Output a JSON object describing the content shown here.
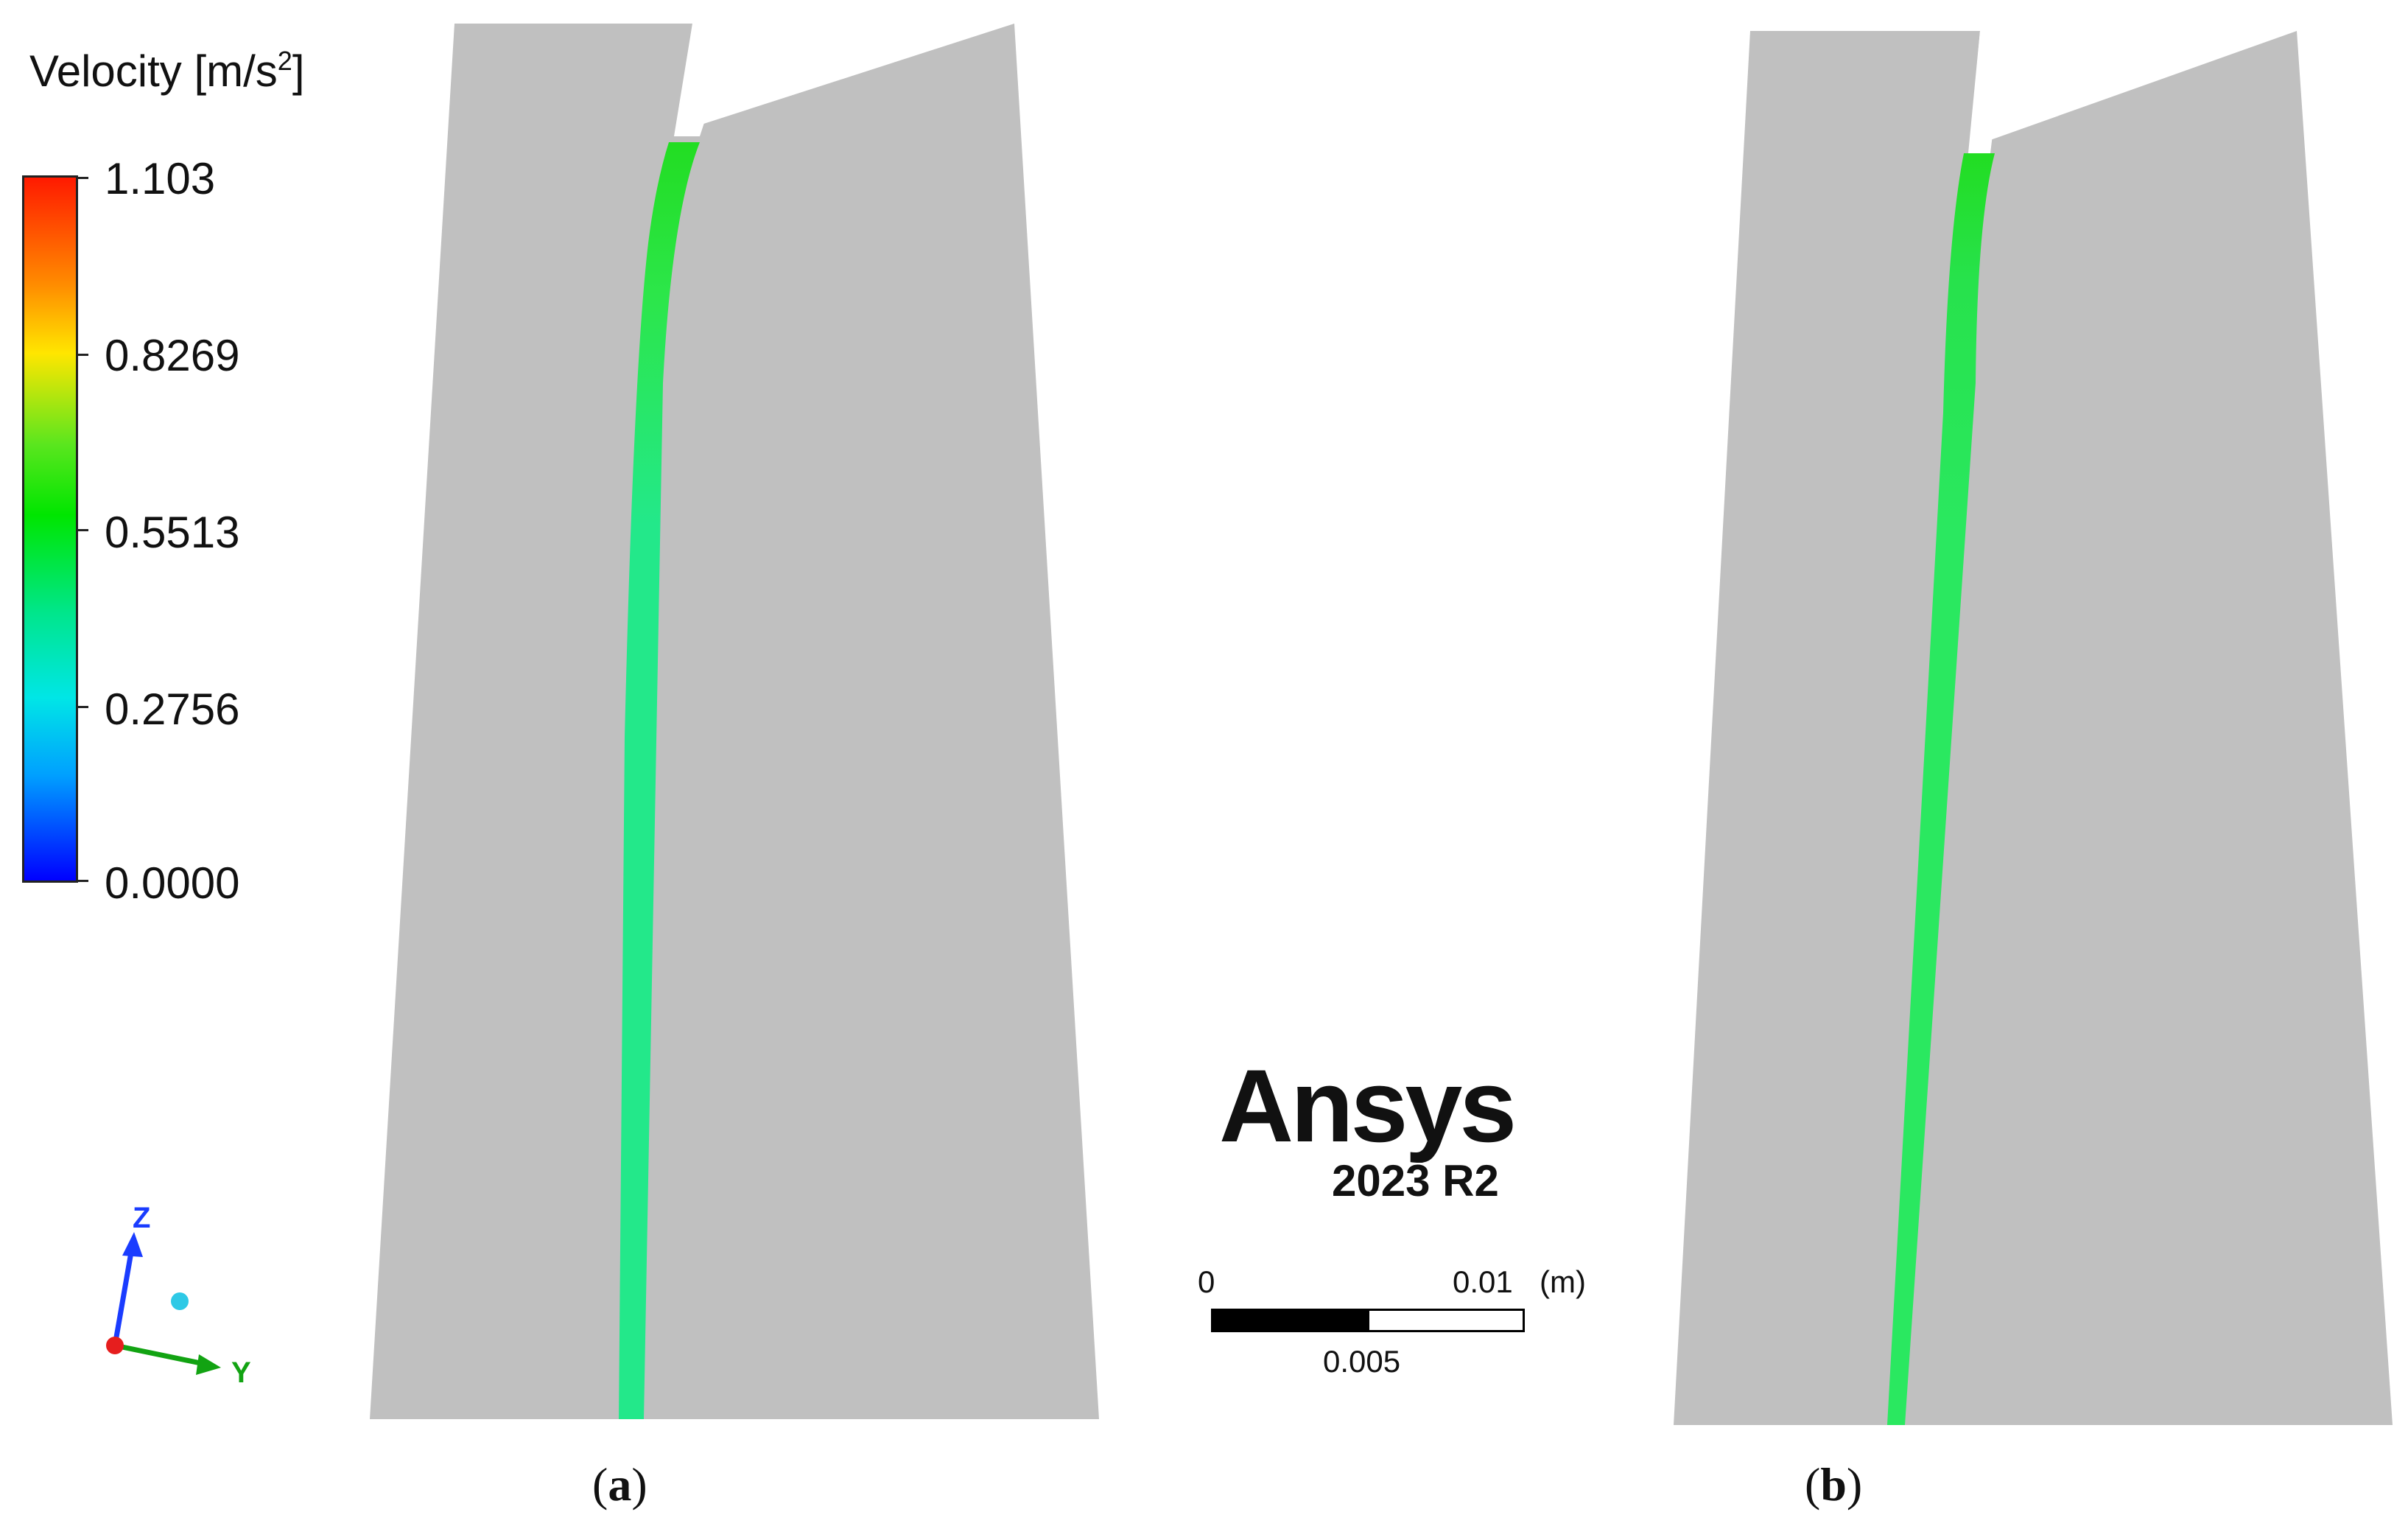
{
  "legend": {
    "title_main": "Velocity [m/s",
    "title_sup": "2",
    "title_close": "]",
    "ticks": [
      "1.103",
      "0.8269",
      "0.5513",
      "0.2756",
      "0.0000"
    ],
    "color_stops": [
      "#ff1a00",
      "#ffe600",
      "#00e600",
      "#00e68c",
      "#00e6e6",
      "#0000ff"
    ]
  },
  "axes_triad": {
    "z_label": "Z",
    "y_label": "Y",
    "colors": {
      "z": "#1a3cff",
      "y": "#12a312",
      "origin": "#e61e1e",
      "x": "#2ec9e6"
    }
  },
  "logo": {
    "word": "Ansys",
    "version": "2023 R2"
  },
  "scale_bar": {
    "label_start": "0",
    "label_end": "0.01",
    "unit": "(m)",
    "label_mid": "0.005"
  },
  "panels": [
    {
      "caption_open": "(",
      "caption_letter": "a",
      "caption_close": ")"
    },
    {
      "caption_open": "(",
      "caption_letter": "b",
      "caption_close": ")"
    }
  ],
  "colors": {
    "domain_fill": "#c0c0c0",
    "flow_main": "#23e88a",
    "flow_fast": "#22dd22"
  }
}
